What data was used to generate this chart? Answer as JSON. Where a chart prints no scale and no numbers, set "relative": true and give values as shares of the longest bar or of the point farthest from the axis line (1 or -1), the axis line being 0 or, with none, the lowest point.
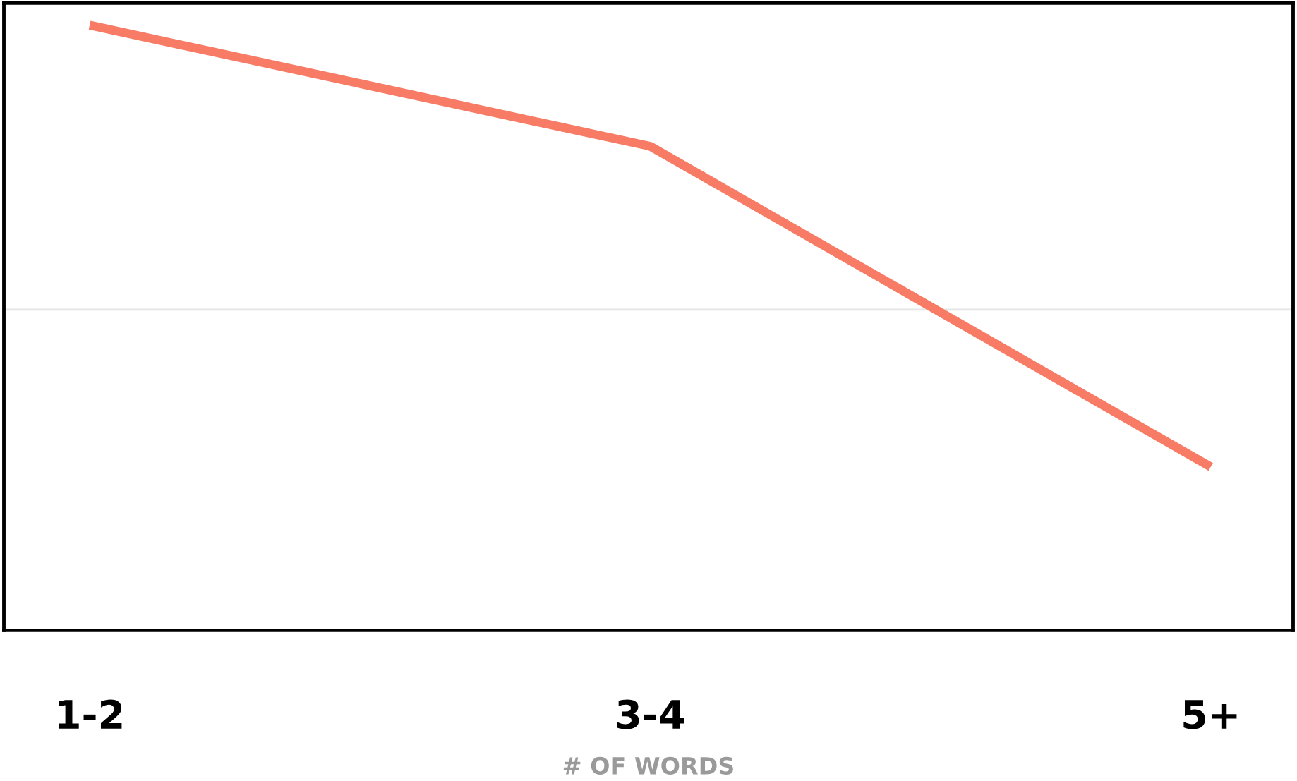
{
  "chart_data": {
    "type": "line",
    "relative": true,
    "xlabel": "# OF WORDS",
    "categories": [
      "1-2",
      "3-4",
      "5+"
    ],
    "series": [
      {
        "color": "#f77b65",
        "values": [
          1,
          0.8,
          0.27
        ]
      }
    ],
    "ref_lines": [
      {
        "axis": "y",
        "value": 0.53,
        "color": "#e6e6e6"
      }
    ],
    "marker": "none",
    "line_style": "solid",
    "grid": false,
    "legend": false
  }
}
